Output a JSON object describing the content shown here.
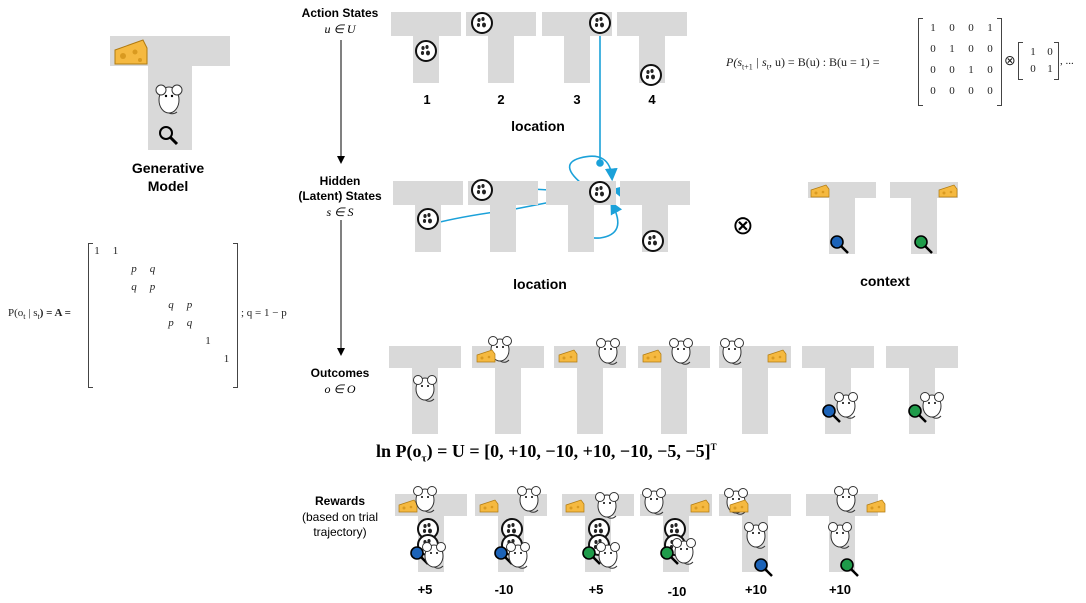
{
  "left": {
    "model_title_line1": "Generative",
    "model_title_line2": "Model",
    "A_lhs": "P(o",
    "A_lhs_sub": "t",
    "A_lhs_mid": " | s",
    "A_lhs_sub2": "t",
    "A_lhs_end": ") = A =",
    "A_rhs": "; q = 1 − p",
    "A_entries": [
      "1",
      "1",
      "p",
      "q",
      "q",
      "p",
      "q",
      "p",
      "p",
      "q",
      "1",
      "1"
    ]
  },
  "rows": {
    "action_title": "Action States",
    "action_math": "u ∈ U",
    "hidden_line1": "Hidden",
    "hidden_line2": "(Latent) States",
    "hidden_math": "s ∈ S",
    "outcomes_title": "Outcomes",
    "outcomes_math": "o ∈ O",
    "rewards_title": "Rewards",
    "rewards_sub1": "(based on trial",
    "rewards_sub2": "trajectory)"
  },
  "actions": {
    "labels": [
      "1",
      "2",
      "3",
      "4"
    ],
    "caption": "location"
  },
  "transition": {
    "lhs": "P(s",
    "lhs_sub1": "t+1",
    "lhs_mid": " | s",
    "lhs_sub2": "t",
    "lhs_end": ", u) = B(u) : B(u = 1) =",
    "B_matrix": [
      [
        "1",
        "0",
        "0",
        "1"
      ],
      [
        "0",
        "1",
        "0",
        "0"
      ],
      [
        "0",
        "0",
        "1",
        "0"
      ],
      [
        "0",
        "0",
        "0",
        "0"
      ]
    ],
    "otimes": "⊗",
    "I_matrix": [
      [
        "1",
        "0"
      ],
      [
        "0",
        "1"
      ]
    ],
    "tail": ", ..."
  },
  "hidden": {
    "location_caption": "location",
    "context_caption": "context",
    "otimes": "⊗"
  },
  "utility": {
    "lhs": "ln P(o",
    "lhs_sub": "τ",
    "rhs": ") = U = [0, +10, −10, +10, −10, −5, −5]",
    "sup": "T"
  },
  "rewards": {
    "values": [
      "+5",
      "-10",
      "+5",
      "-10",
      "+10",
      "+10"
    ]
  },
  "colors": {
    "track": "#d9d9d9",
    "arrow": "#1ba1d9",
    "cheese": "#f5b940",
    "blue_lens": "#1c63b8",
    "green_lens": "#1f9b4a"
  },
  "icons": [
    "cheese-icon",
    "mouse-icon",
    "magnifier-icon",
    "paw-print-icon",
    "arrow-icon",
    "otimes-icon"
  ]
}
